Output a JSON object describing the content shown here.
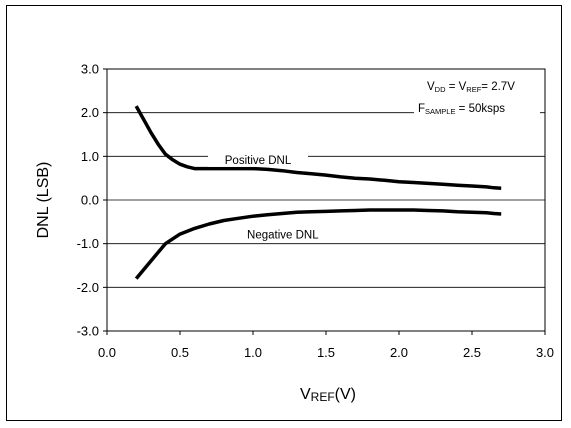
{
  "chart_data": {
    "type": "line",
    "title": "",
    "xlabel": {
      "main": "V",
      "sub": "REF",
      "suffix": "(V)"
    },
    "ylabel": "DNL (LSB)",
    "xlim": [
      0.0,
      3.0
    ],
    "ylim": [
      -3.0,
      3.0
    ],
    "x_ticks": [
      "0.0",
      "0.5",
      "1.0",
      "1.5",
      "2.0",
      "2.5",
      "3.0"
    ],
    "y_ticks": [
      "3.0",
      "2.0",
      "1.0",
      "0.0",
      "-1.0",
      "-2.0",
      "-3.0"
    ],
    "grid": "horizontal",
    "annotations": {
      "line1": {
        "a": "V",
        "a_sub": "DD",
        "eq": " = V",
        "b_sub": "REF",
        "rest": "= 2.7V"
      },
      "line2": {
        "a": "F",
        "a_sub": "SAMPLE",
        "rest": " = 50ksps"
      }
    },
    "series": [
      {
        "name": "Positive DNL",
        "x": [
          0.2,
          0.25,
          0.3,
          0.35,
          0.4,
          0.45,
          0.5,
          0.55,
          0.6,
          0.7,
          0.8,
          0.9,
          1.0,
          1.1,
          1.2,
          1.3,
          1.4,
          1.5,
          1.6,
          1.7,
          1.8,
          1.9,
          2.0,
          2.1,
          2.2,
          2.3,
          2.4,
          2.5,
          2.6,
          2.65,
          2.7
        ],
        "values": [
          2.15,
          1.85,
          1.55,
          1.28,
          1.05,
          0.92,
          0.82,
          0.76,
          0.72,
          0.72,
          0.72,
          0.72,
          0.72,
          0.7,
          0.67,
          0.63,
          0.6,
          0.57,
          0.53,
          0.5,
          0.48,
          0.45,
          0.42,
          0.4,
          0.38,
          0.36,
          0.34,
          0.32,
          0.3,
          0.28,
          0.27
        ],
        "color": "#000000"
      },
      {
        "name": "Negative DNL",
        "x": [
          0.2,
          0.3,
          0.4,
          0.5,
          0.6,
          0.7,
          0.8,
          0.9,
          1.0,
          1.1,
          1.2,
          1.3,
          1.4,
          1.5,
          1.6,
          1.7,
          1.8,
          1.9,
          2.0,
          2.1,
          2.2,
          2.3,
          2.4,
          2.5,
          2.6,
          2.65,
          2.7
        ],
        "values": [
          -1.8,
          -1.4,
          -1.0,
          -0.78,
          -0.65,
          -0.55,
          -0.47,
          -0.42,
          -0.37,
          -0.34,
          -0.31,
          -0.28,
          -0.27,
          -0.26,
          -0.25,
          -0.24,
          -0.23,
          -0.23,
          -0.23,
          -0.23,
          -0.24,
          -0.25,
          -0.27,
          -0.28,
          -0.29,
          -0.31,
          -0.32
        ],
        "color": "#000000"
      }
    ]
  }
}
